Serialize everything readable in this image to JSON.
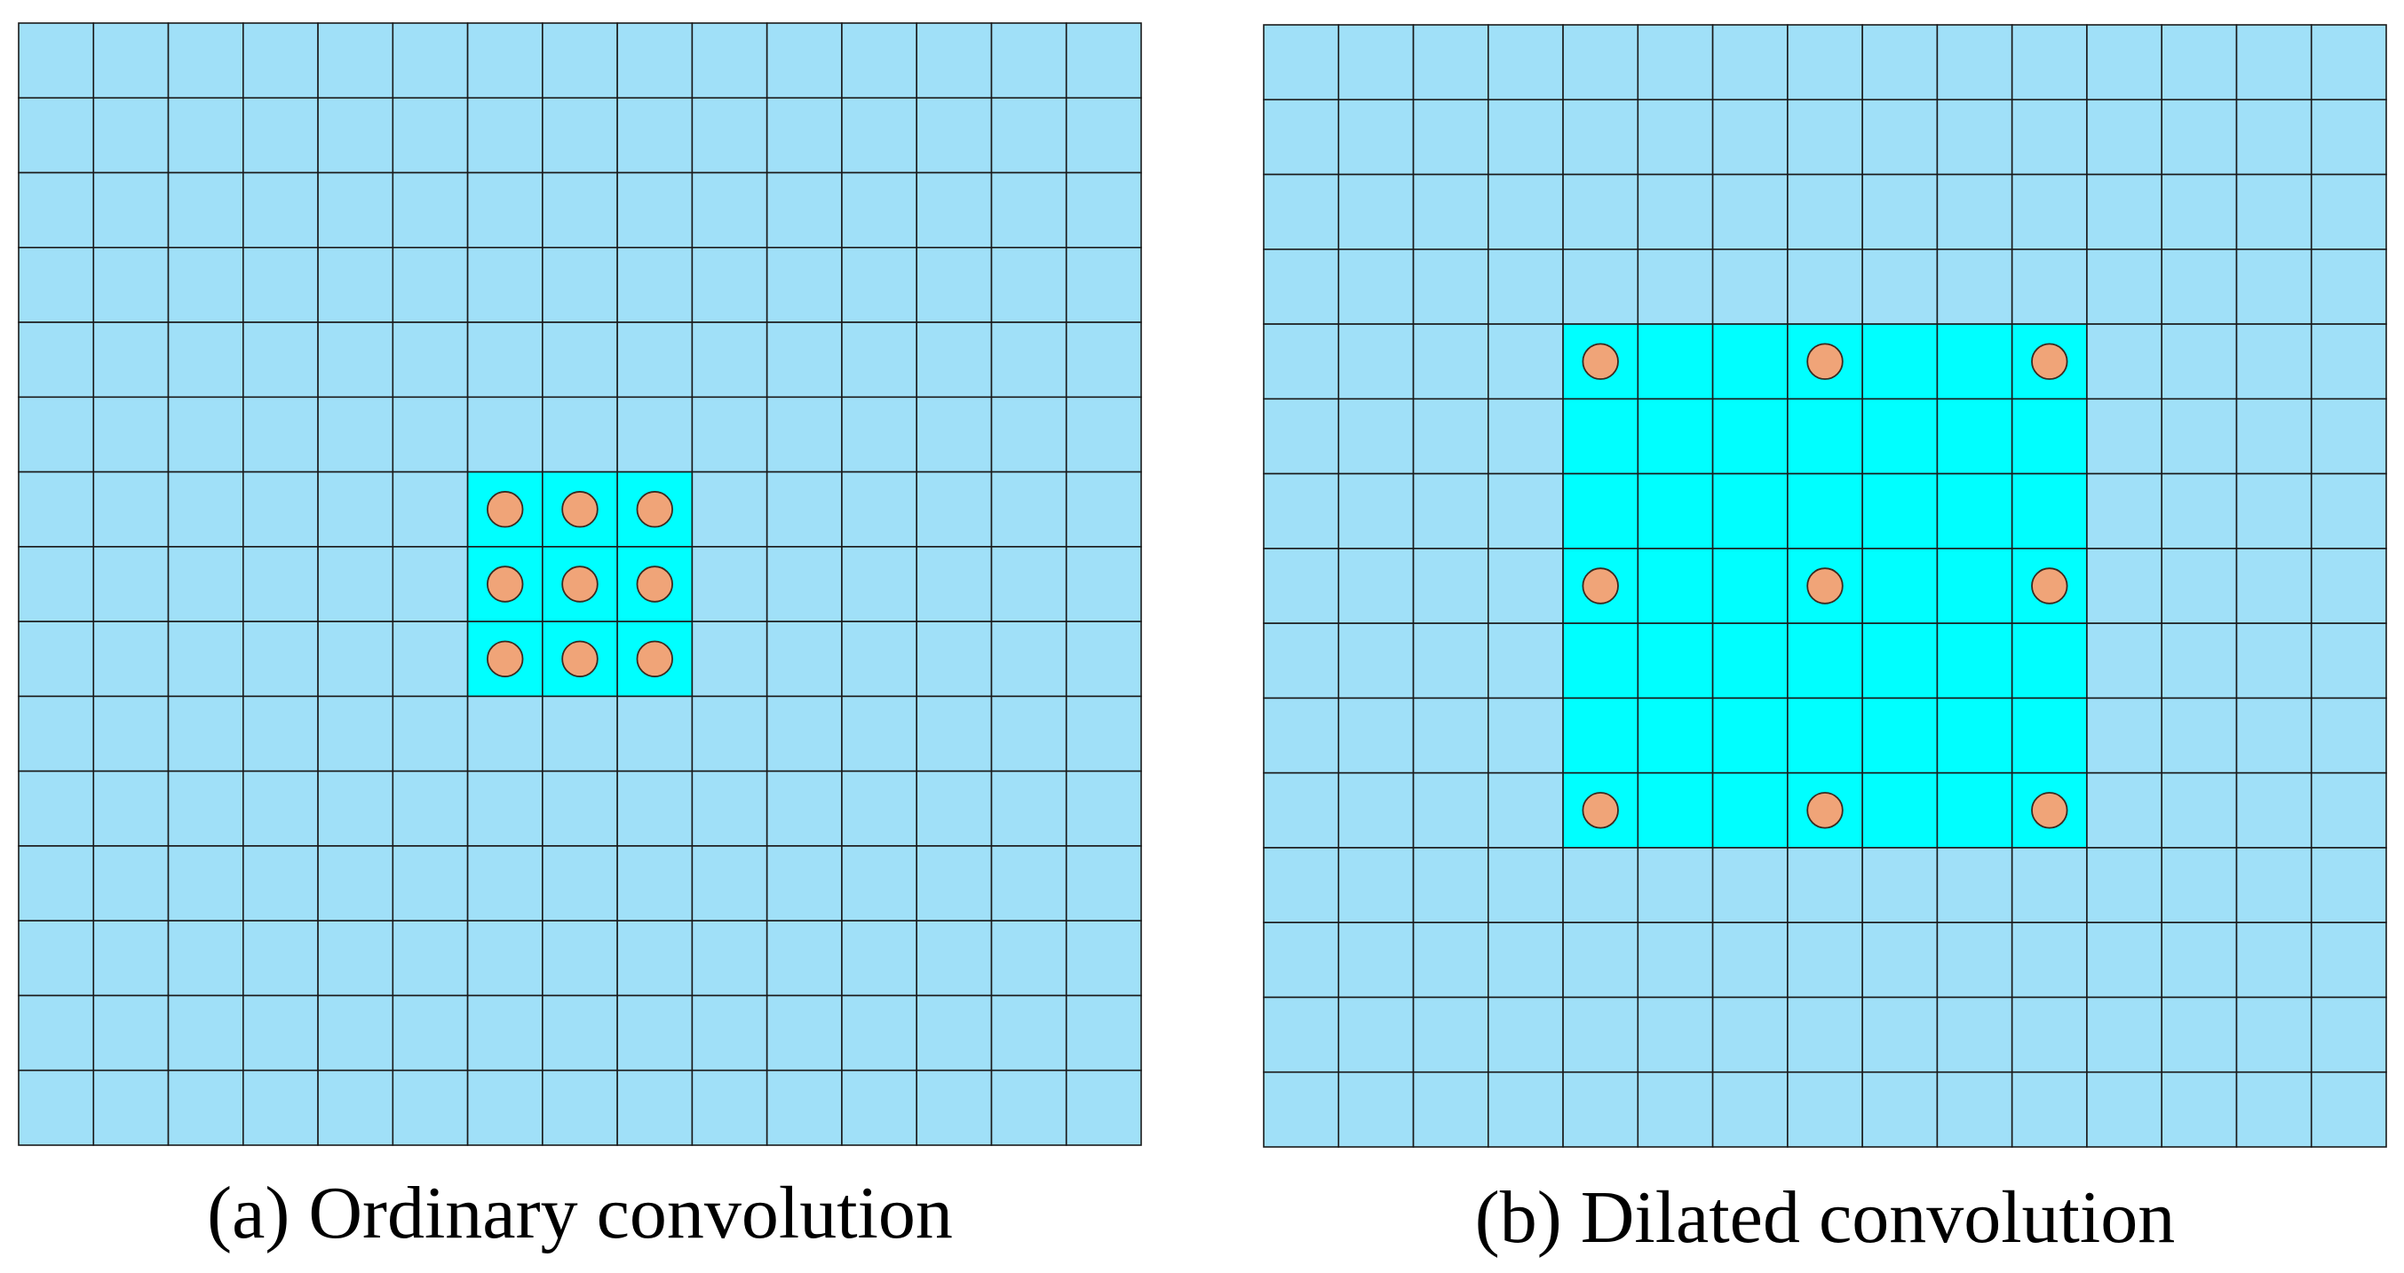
{
  "panels": [
    {
      "id": "a",
      "caption": "(a) Ordinary convolution",
      "grid_size": 15,
      "highlight_cells": {
        "row_start": 6,
        "row_end": 8,
        "col_start": 6,
        "col_end": 8
      },
      "kernel_points": [
        [
          6,
          6
        ],
        [
          6,
          7
        ],
        [
          6,
          8
        ],
        [
          7,
          6
        ],
        [
          7,
          7
        ],
        [
          7,
          8
        ],
        [
          8,
          6
        ],
        [
          8,
          7
        ],
        [
          8,
          8
        ]
      ]
    },
    {
      "id": "b",
      "caption": "(b) Dilated convolution",
      "grid_size": 15,
      "highlight_cells": {
        "row_start": 4,
        "row_end": 10,
        "col_start": 4,
        "col_end": 10
      },
      "kernel_points": [
        [
          4,
          4
        ],
        [
          4,
          7
        ],
        [
          4,
          10
        ],
        [
          7,
          4
        ],
        [
          7,
          7
        ],
        [
          7,
          10
        ],
        [
          10,
          4
        ],
        [
          10,
          7
        ],
        [
          10,
          10
        ]
      ]
    }
  ],
  "colors": {
    "cell_fill": "#a0e0f8",
    "highlight_fill": "#00ffff",
    "grid_line": "#1a1a1a",
    "point_fill": "#f0a478",
    "point_stroke": "#3a2a20"
  }
}
